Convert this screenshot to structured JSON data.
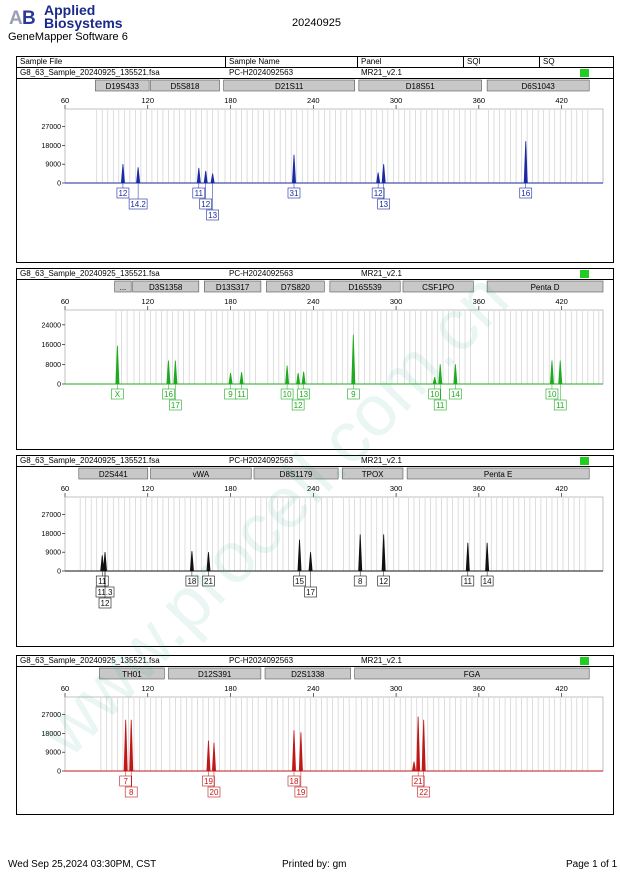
{
  "header": {
    "logo_line1": "Applied",
    "logo_line2": "Biosystems",
    "software": "GeneMapper Software 6",
    "run_date": "20240925",
    "columns": [
      "Sample File",
      "Sample Name",
      "Panel",
      "SQI",
      "SQ"
    ]
  },
  "watermark": "www.procell.com.cn",
  "colors": {
    "panel1": "#1a2aa0",
    "panel2": "#1faa1f",
    "panel3": "#111111",
    "panel4": "#c01818",
    "quality": "#22cc22"
  },
  "footer": {
    "date": "Wed Sep 25,2024 03:30PM, CST",
    "printed_by": "Printed by: gm",
    "page": "Page 1 of 1"
  },
  "chart_data": [
    {
      "type": "line",
      "sample_file": "G8_63_Sample_20240925_135521.fsa",
      "sample_name": "PC-H2024092563",
      "panel": "MR21_v2.1",
      "xlim": [
        60,
        450
      ],
      "x_ticks": [
        60,
        120,
        180,
        240,
        300,
        360,
        420
      ],
      "ylim": [
        0,
        33000
      ],
      "y_ticks": [
        0,
        9000,
        18000,
        27000
      ],
      "y_tick_labels": [
        "0",
        "9000",
        "18000",
        "27000"
      ],
      "loci": [
        {
          "name": "D19S433",
          "start": 82,
          "end": 121
        },
        {
          "name": "D5S818",
          "start": 122,
          "end": 172
        },
        {
          "name": "D21S11",
          "start": 175,
          "end": 270
        },
        {
          "name": "D18S51",
          "start": 273,
          "end": 362
        },
        {
          "name": "D6S1043",
          "start": 366,
          "end": 440
        }
      ],
      "peaks": [
        {
          "x": 102,
          "h": 9000
        },
        {
          "x": 113,
          "h": 7500
        },
        {
          "x": 157,
          "h": 7200
        },
        {
          "x": 162,
          "h": 5800
        },
        {
          "x": 167,
          "h": 4500
        },
        {
          "x": 226,
          "h": 13500
        },
        {
          "x": 287,
          "h": 5000
        },
        {
          "x": 291,
          "h": 9000
        },
        {
          "x": 394,
          "h": 20000
        }
      ],
      "alleles": [
        {
          "x": 102,
          "row": 0,
          "label": "12"
        },
        {
          "x": 113,
          "row": 1,
          "label": "14.2"
        },
        {
          "x": 157,
          "row": 0,
          "label": "11"
        },
        {
          "x": 162,
          "row": 1,
          "label": "12"
        },
        {
          "x": 167,
          "row": 2,
          "label": "13"
        },
        {
          "x": 226,
          "row": 0,
          "label": "31"
        },
        {
          "x": 287,
          "row": 0,
          "label": "12"
        },
        {
          "x": 291,
          "row": 1,
          "label": "13"
        },
        {
          "x": 394,
          "row": 0,
          "label": "16"
        }
      ]
    },
    {
      "type": "line",
      "sample_file": "G8_63_Sample_20240925_135521.fsa",
      "sample_name": "PC-H2024092563",
      "panel": "MR21_v2.1",
      "xlim": [
        60,
        450
      ],
      "x_ticks": [
        60,
        120,
        180,
        240,
        300,
        360,
        420
      ],
      "ylim": [
        0,
        28000
      ],
      "y_ticks": [
        0,
        8000,
        16000,
        24000
      ],
      "y_tick_labels": [
        "0",
        "8000",
        "16000",
        "24000"
      ],
      "loci": [
        {
          "name": "...",
          "start": 96,
          "end": 108
        },
        {
          "name": "D3S1358",
          "start": 109,
          "end": 157
        },
        {
          "name": "D13S317",
          "start": 161,
          "end": 202
        },
        {
          "name": "D7S820",
          "start": 206,
          "end": 248
        },
        {
          "name": "D16S539",
          "start": 252,
          "end": 303
        },
        {
          "name": "CSF1PO",
          "start": 305,
          "end": 356
        },
        {
          "name": "Penta D",
          "start": 366,
          "end": 450
        }
      ],
      "peaks": [
        {
          "x": 98,
          "h": 15500
        },
        {
          "x": 135,
          "h": 9500
        },
        {
          "x": 140,
          "h": 9500
        },
        {
          "x": 180,
          "h": 4500
        },
        {
          "x": 188,
          "h": 4800
        },
        {
          "x": 221,
          "h": 7500
        },
        {
          "x": 229,
          "h": 4500
        },
        {
          "x": 233,
          "h": 5000
        },
        {
          "x": 269,
          "h": 20000
        },
        {
          "x": 328,
          "h": 2800
        },
        {
          "x": 332,
          "h": 8000
        },
        {
          "x": 343,
          "h": 8000
        },
        {
          "x": 413,
          "h": 9500
        },
        {
          "x": 419,
          "h": 9500
        }
      ],
      "alleles": [
        {
          "x": 98,
          "row": 0,
          "label": "X"
        },
        {
          "x": 135,
          "row": 0,
          "label": "16"
        },
        {
          "x": 140,
          "row": 1,
          "label": "17"
        },
        {
          "x": 180,
          "row": 0,
          "label": "9"
        },
        {
          "x": 188,
          "row": 0,
          "label": "11"
        },
        {
          "x": 221,
          "row": 0,
          "label": "10"
        },
        {
          "x": 229,
          "row": 1,
          "label": "12"
        },
        {
          "x": 233,
          "row": 0,
          "label": "13"
        },
        {
          "x": 269,
          "row": 0,
          "label": "9"
        },
        {
          "x": 328,
          "row": 0,
          "label": "10"
        },
        {
          "x": 332,
          "row": 1,
          "label": "11"
        },
        {
          "x": 343,
          "row": 0,
          "label": "14"
        },
        {
          "x": 413,
          "row": 0,
          "label": "10"
        },
        {
          "x": 419,
          "row": 1,
          "label": "11"
        }
      ]
    },
    {
      "type": "line",
      "sample_file": "G8_63_Sample_20240925_135521.fsa",
      "sample_name": "PC-H2024092563",
      "panel": "MR21_v2.1",
      "xlim": [
        60,
        450
      ],
      "x_ticks": [
        60,
        120,
        180,
        240,
        300,
        360,
        420
      ],
      "ylim": [
        0,
        33000
      ],
      "y_ticks": [
        0,
        9000,
        18000,
        27000
      ],
      "y_tick_labels": [
        "0",
        "9000",
        "18000",
        "27000"
      ],
      "loci": [
        {
          "name": "D2S441",
          "start": 70,
          "end": 120
        },
        {
          "name": "vWA",
          "start": 122,
          "end": 195
        },
        {
          "name": "D8S1179",
          "start": 197,
          "end": 258
        },
        {
          "name": "TPOX",
          "start": 261,
          "end": 305
        },
        {
          "name": "Penta E",
          "start": 308,
          "end": 440
        }
      ],
      "peaks": [
        {
          "x": 87,
          "h": 7500
        },
        {
          "x": 89,
          "h": 9000
        },
        {
          "x": 152,
          "h": 9500
        },
        {
          "x": 164,
          "h": 9000
        },
        {
          "x": 230,
          "h": 15000
        },
        {
          "x": 238,
          "h": 9000
        },
        {
          "x": 274,
          "h": 17500
        },
        {
          "x": 291,
          "h": 17500
        },
        {
          "x": 352,
          "h": 13500
        },
        {
          "x": 366,
          "h": 13500
        }
      ],
      "alleles": [
        {
          "x": 87,
          "row": 0,
          "label": "11"
        },
        {
          "x": 89,
          "row": 1,
          "label": "11.3"
        },
        {
          "x": 89,
          "row": 2,
          "label": "12"
        },
        {
          "x": 152,
          "row": 0,
          "label": "18"
        },
        {
          "x": 164,
          "row": 0,
          "label": "21"
        },
        {
          "x": 230,
          "row": 0,
          "label": "15"
        },
        {
          "x": 238,
          "row": 1,
          "label": "17"
        },
        {
          "x": 274,
          "row": 0,
          "label": "8"
        },
        {
          "x": 291,
          "row": 0,
          "label": "12"
        },
        {
          "x": 352,
          "row": 0,
          "label": "11"
        },
        {
          "x": 366,
          "row": 0,
          "label": "14"
        }
      ]
    },
    {
      "type": "line",
      "sample_file": "G8_63_Sample_20240925_135521.fsa",
      "sample_name": "PC-H2024092563",
      "panel": "MR21_v2.1",
      "xlim": [
        60,
        450
      ],
      "x_ticks": [
        60,
        120,
        180,
        240,
        300,
        360,
        420
      ],
      "ylim": [
        0,
        33000
      ],
      "y_ticks": [
        0,
        9000,
        18000,
        27000
      ],
      "y_tick_labels": [
        "0",
        "9000",
        "18000",
        "27000"
      ],
      "loci": [
        {
          "name": "TH01",
          "start": 85,
          "end": 132
        },
        {
          "name": "D12S391",
          "start": 135,
          "end": 202
        },
        {
          "name": "D2S1338",
          "start": 205,
          "end": 267
        },
        {
          "name": "FGA",
          "start": 270,
          "end": 440
        }
      ],
      "peaks": [
        {
          "x": 104,
          "h": 24500
        },
        {
          "x": 108,
          "h": 24500
        },
        {
          "x": 164,
          "h": 14500
        },
        {
          "x": 168,
          "h": 13500
        },
        {
          "x": 226,
          "h": 19500
        },
        {
          "x": 231,
          "h": 18500
        },
        {
          "x": 313,
          "h": 4500
        },
        {
          "x": 316,
          "h": 26000
        },
        {
          "x": 320,
          "h": 24500
        }
      ],
      "alleles": [
        {
          "x": 104,
          "row": 0,
          "label": "7"
        },
        {
          "x": 108,
          "row": 1,
          "label": "8"
        },
        {
          "x": 164,
          "row": 0,
          "label": "19"
        },
        {
          "x": 168,
          "row": 1,
          "label": "20"
        },
        {
          "x": 226,
          "row": 0,
          "label": "18"
        },
        {
          "x": 231,
          "row": 1,
          "label": "19"
        },
        {
          "x": 316,
          "row": 0,
          "label": "21"
        },
        {
          "x": 320,
          "row": 1,
          "label": "22"
        }
      ]
    }
  ]
}
